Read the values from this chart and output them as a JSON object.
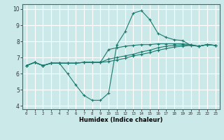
{
  "xlabel": "Humidex (Indice chaleur)",
  "bg_color": "#cce9e9",
  "grid_color": "#ffffff",
  "line_color": "#1a7a6e",
  "xlim": [
    -0.5,
    23.5
  ],
  "ylim": [
    3.8,
    10.3
  ],
  "xticks": [
    0,
    1,
    2,
    3,
    4,
    5,
    6,
    7,
    8,
    9,
    10,
    11,
    12,
    13,
    14,
    15,
    16,
    17,
    18,
    19,
    20,
    21,
    22,
    23
  ],
  "yticks": [
    4,
    5,
    6,
    7,
    8,
    9,
    10
  ],
  "line1_x": [
    0,
    1,
    2,
    3,
    4,
    5,
    6,
    7,
    8,
    9,
    10,
    11,
    12,
    13,
    14,
    15,
    16,
    17,
    18,
    19,
    20,
    21,
    22,
    23
  ],
  "line1_y": [
    6.5,
    6.7,
    6.5,
    6.65,
    6.65,
    6.0,
    5.3,
    4.65,
    4.35,
    4.35,
    4.8,
    7.8,
    8.6,
    9.75,
    9.9,
    9.35,
    8.5,
    8.25,
    8.1,
    8.05,
    7.75,
    7.7,
    7.8,
    7.75
  ],
  "line2_x": [
    0,
    1,
    2,
    3,
    4,
    5,
    6,
    7,
    8,
    9,
    10,
    11,
    12,
    13,
    14,
    15,
    16,
    17,
    18,
    19,
    20,
    21,
    22,
    23
  ],
  "line2_y": [
    6.5,
    6.7,
    6.5,
    6.65,
    6.65,
    6.65,
    6.65,
    6.7,
    6.7,
    6.7,
    6.75,
    6.85,
    6.95,
    7.1,
    7.2,
    7.3,
    7.45,
    7.55,
    7.65,
    7.7,
    7.75,
    7.7,
    7.8,
    7.75
  ],
  "line3_x": [
    0,
    1,
    2,
    3,
    4,
    5,
    6,
    7,
    8,
    9,
    10,
    11,
    12,
    13,
    14,
    15,
    16,
    17,
    18,
    19,
    20,
    21,
    22,
    23
  ],
  "line3_y": [
    6.5,
    6.7,
    6.5,
    6.65,
    6.65,
    6.65,
    6.65,
    6.7,
    6.7,
    6.7,
    6.9,
    7.0,
    7.1,
    7.2,
    7.35,
    7.45,
    7.6,
    7.7,
    7.75,
    7.78,
    7.78,
    7.7,
    7.8,
    7.75
  ],
  "line4_x": [
    0,
    1,
    2,
    3,
    4,
    5,
    6,
    7,
    8,
    9,
    10,
    11,
    12,
    13,
    14,
    15,
    16,
    17,
    18,
    19,
    20,
    21,
    22,
    23
  ],
  "line4_y": [
    6.5,
    6.7,
    6.5,
    6.65,
    6.65,
    6.65,
    6.65,
    6.7,
    6.7,
    6.7,
    7.5,
    7.6,
    7.7,
    7.75,
    7.8,
    7.8,
    7.85,
    7.85,
    7.85,
    7.85,
    7.8,
    7.7,
    7.8,
    7.75
  ]
}
